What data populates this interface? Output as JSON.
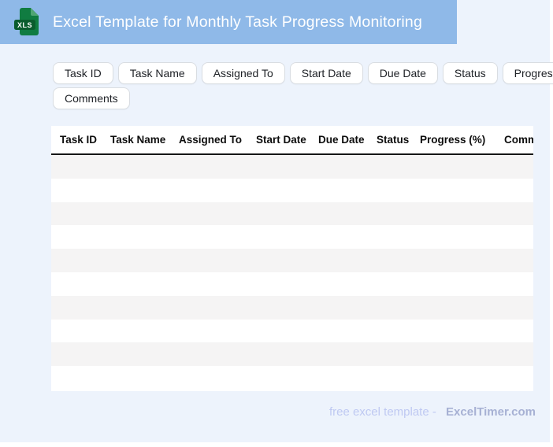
{
  "app": {
    "title": "Excel Template for Monthly Task Progress Monitoring",
    "icon_label": "XLS",
    "header_color": "#8fb9e8",
    "icon_color": "#107c41"
  },
  "chips": {
    "row1": [
      "Task ID",
      "Task Name",
      "Assigned To",
      "Start Date",
      "Due Date",
      "Status",
      "Progress (%)"
    ],
    "row2": [
      "Comments"
    ]
  },
  "table": {
    "columns": [
      "Task ID",
      "Task Name",
      "Assigned To",
      "Start Date",
      "Due Date",
      "Status",
      "Progress (%)",
      "Comments"
    ],
    "row_count": 10,
    "stripe_color": "#f5f4f4"
  },
  "footer": {
    "text": "free excel template -",
    "brand": "ExcelTimer.com"
  },
  "page": {
    "background": "#edf3fc"
  }
}
